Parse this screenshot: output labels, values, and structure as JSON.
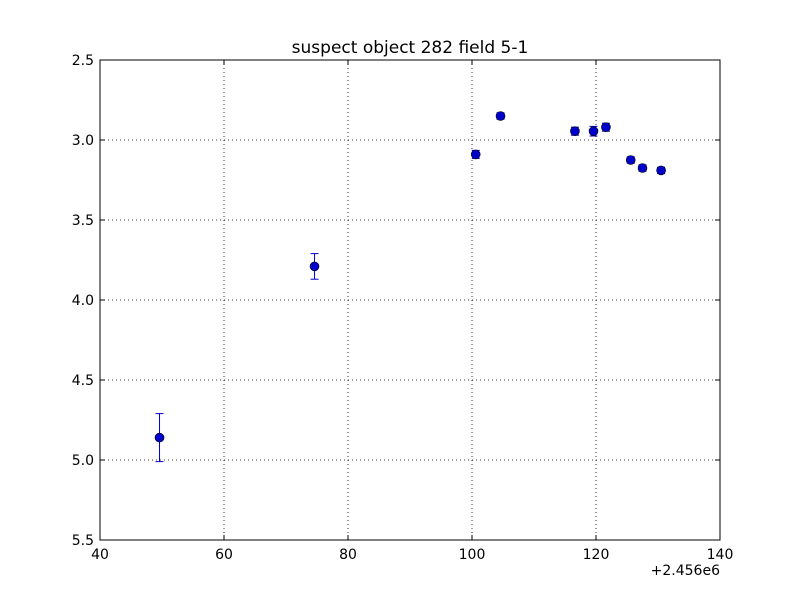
{
  "chart_data": {
    "type": "scatter",
    "title": "suspect object 282 field 5-1",
    "xlabel": "",
    "ylabel": "",
    "x_offset_label": "+2.456e6",
    "xlim": [
      40,
      140
    ],
    "ylim": [
      5.5,
      2.5
    ],
    "y_inverted": true,
    "grid": true,
    "x_ticks": [
      40,
      60,
      80,
      100,
      120,
      140
    ],
    "y_ticks": [
      2.5,
      3.0,
      3.5,
      4.0,
      4.5,
      5.0,
      5.5
    ],
    "x_tick_labels": [
      "40",
      "60",
      "80",
      "100",
      "120",
      "140"
    ],
    "y_tick_labels": [
      "2.5",
      "3.0",
      "3.5",
      "4.0",
      "4.5",
      "5.0",
      "5.5"
    ],
    "marker_color": "#0000cc",
    "series": [
      {
        "points": [
          {
            "x": 49.6,
            "y": 4.86,
            "err": 0.15
          },
          {
            "x": 74.6,
            "y": 3.79,
            "err": 0.08
          },
          {
            "x": 100.6,
            "y": 3.09,
            "err": 0.025
          },
          {
            "x": 104.6,
            "y": 2.85,
            "err": 0.02
          },
          {
            "x": 116.6,
            "y": 2.945,
            "err": 0.025
          },
          {
            "x": 119.6,
            "y": 2.945,
            "err": 0.03
          },
          {
            "x": 121.6,
            "y": 2.92,
            "err": 0.025
          },
          {
            "x": 125.6,
            "y": 3.125,
            "err": 0.02
          },
          {
            "x": 127.5,
            "y": 3.175,
            "err": 0.02
          },
          {
            "x": 130.5,
            "y": 3.19,
            "err": 0.02
          }
        ]
      }
    ]
  }
}
